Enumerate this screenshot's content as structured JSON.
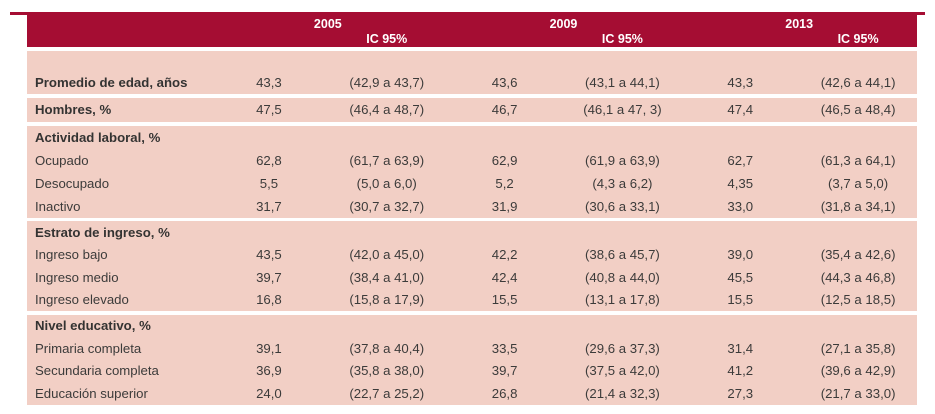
{
  "table": {
    "colors": {
      "header_red": "#a50d33",
      "row_pink": "#f2cfc5",
      "text_dark": "#3c3b3a"
    },
    "header": {
      "groups": [
        {
          "year": "2005",
          "ic_label": "IC 95%"
        },
        {
          "year": "2009",
          "ic_label": "IC 95%"
        },
        {
          "year": "2013",
          "ic_label": "IC 95%"
        }
      ]
    },
    "sections": [
      {
        "rows": [
          {
            "label": "Promedio de edad, años",
            "cells": [
              "43,3",
              "(42,9 a 43,7)",
              "43,6",
              "(43,1 a 44,1)",
              "43,3",
              "(42,6 a 44,1)"
            ]
          }
        ]
      },
      {
        "rows": [
          {
            "label": "Hombres, %",
            "cells": [
              "47,5",
              "(46,4 a 48,7)",
              "46,7",
              "(46,1 a 47, 3)",
              "47,4",
              "(46,5 a 48,4)"
            ]
          }
        ]
      },
      {
        "rows": [
          {
            "label": "Actividad laboral, %",
            "cells": [
              "",
              "",
              "",
              "",
              "",
              ""
            ]
          },
          {
            "label": "Ocupado",
            "cells": [
              "62,8",
              "(61,7 a 63,9)",
              "62,9",
              "(61,9 a 63,9)",
              "62,7",
              "(61,3 a 64,1)"
            ]
          },
          {
            "label": "Desocupado",
            "cells": [
              "5,5",
              "(5,0 a 6,0)",
              "5,2",
              "(4,3 a 6,2)",
              "4,35",
              "(3,7 a 5,0)"
            ]
          },
          {
            "label": "Inactivo",
            "cells": [
              "31,7",
              "(30,7 a 32,7)",
              "31,9",
              "(30,6 a 33,1)",
              "33,0",
              "(31,8 a 34,1)"
            ]
          }
        ]
      },
      {
        "rows": [
          {
            "label": "Estrato de ingreso, %",
            "cells": [
              "",
              "",
              "",
              "",
              "",
              ""
            ]
          },
          {
            "label": "Ingreso bajo",
            "cells": [
              "43,5",
              "(42,0 a 45,0)",
              "42,2",
              "(38,6 a 45,7)",
              "39,0",
              "(35,4 a 42,6)"
            ]
          },
          {
            "label": "Ingreso medio",
            "cells": [
              "39,7",
              "(38,4 a 41,0)",
              "42,4",
              "(40,8 a 44,0)",
              "45,5",
              "(44,3 a 46,8)"
            ]
          },
          {
            "label": "Ingreso elevado",
            "cells": [
              "16,8",
              "(15,8 a 17,9)",
              "15,5",
              "(13,1 a 17,8)",
              "15,5",
              "(12,5 a 18,5)"
            ]
          }
        ]
      },
      {
        "rows": [
          {
            "label": "Nivel educativo, %",
            "cells": [
              "",
              "",
              "",
              "",
              "",
              ""
            ]
          },
          {
            "label": "Primaria completa",
            "cells": [
              "39,1",
              "(37,8 a 40,4)",
              "33,5",
              "(29,6 a 37,3)",
              "31,4",
              "(27,1 a 35,8)"
            ]
          },
          {
            "label": "Secundaria completa",
            "cells": [
              "36,9",
              "(35,8 a 38,0)",
              "39,7",
              "(37,5 a 42,0)",
              "41,2",
              "(39,6 a 42,9)"
            ]
          },
          {
            "label": "Educación superior",
            "cells": [
              "24,0",
              "(22,7 a 25,2)",
              "26,8",
              "(21,4 a 32,3)",
              "27,3",
              "(21,7 a 33,0)"
            ]
          }
        ]
      }
    ]
  }
}
